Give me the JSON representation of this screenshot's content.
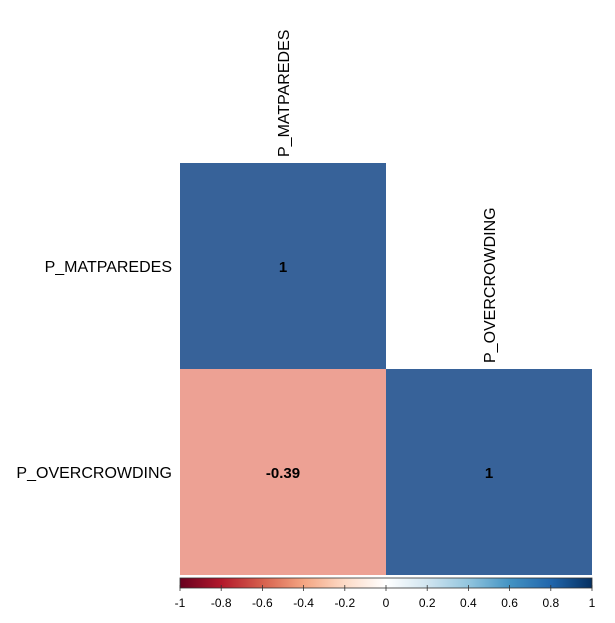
{
  "chart_data": {
    "type": "heatmap",
    "title": "",
    "variables": [
      "P_MATPAREDES",
      "P_OVERCROWDING"
    ],
    "matrix": [
      [
        1,
        null
      ],
      [
        -0.39,
        1
      ]
    ],
    "cell_labels": [
      [
        "1",
        null
      ],
      [
        "-0.39",
        "1"
      ]
    ],
    "colorbar": {
      "range": [
        -1,
        1
      ],
      "ticks": [
        "-1",
        "-0.8",
        "-0.6",
        "-0.4",
        "-0.2",
        "0",
        "0.2",
        "0.4",
        "0.6",
        "0.8",
        "1"
      ],
      "colors": {
        "negative": "#67001F",
        "mid": "#FFFFFF",
        "positive": "#053061"
      }
    },
    "legend_placement": "bottom",
    "triangle": "lower",
    "grid": false
  }
}
